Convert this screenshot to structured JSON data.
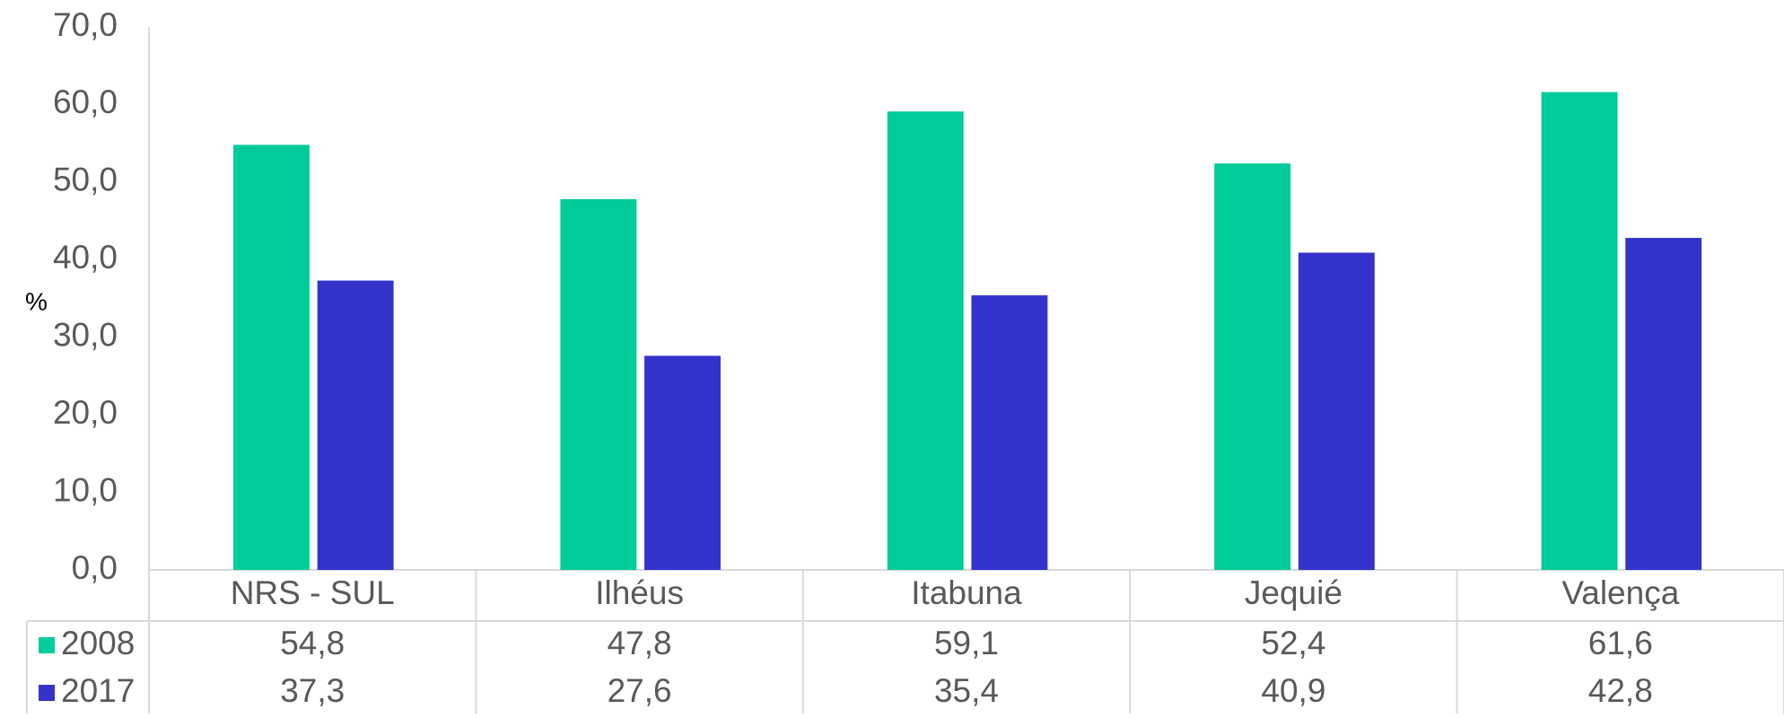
{
  "chart_data": {
    "type": "bar",
    "ylabel": "%",
    "categories": [
      "NRS - SUL",
      "Ilhéus",
      "Itabuna",
      "Jequié",
      "Valença"
    ],
    "series": [
      {
        "name": "2008",
        "color": "#00cc99",
        "values": [
          54.8,
          47.8,
          59.1,
          52.4,
          61.6
        ],
        "value_labels": [
          "54,8",
          "47,8",
          "59,1",
          "52,4",
          "61,6"
        ]
      },
      {
        "name": "2017",
        "color": "#3333cc",
        "values": [
          37.3,
          27.6,
          35.4,
          40.9,
          42.8
        ],
        "value_labels": [
          "37,3",
          "27,6",
          "35,4",
          "40,9",
          "42,8"
        ]
      }
    ],
    "ylim": [
      0,
      70
    ],
    "yticks": [
      {
        "value": 0,
        "label": "0,0"
      },
      {
        "value": 10,
        "label": "10,0"
      },
      {
        "value": 20,
        "label": "20,0"
      },
      {
        "value": 30,
        "label": "30,0"
      },
      {
        "value": 40,
        "label": "40,0"
      },
      {
        "value": 50,
        "label": "50,0"
      },
      {
        "value": 60,
        "label": "60,0"
      },
      {
        "value": 70,
        "label": "70,0"
      }
    ],
    "grid": false
  }
}
